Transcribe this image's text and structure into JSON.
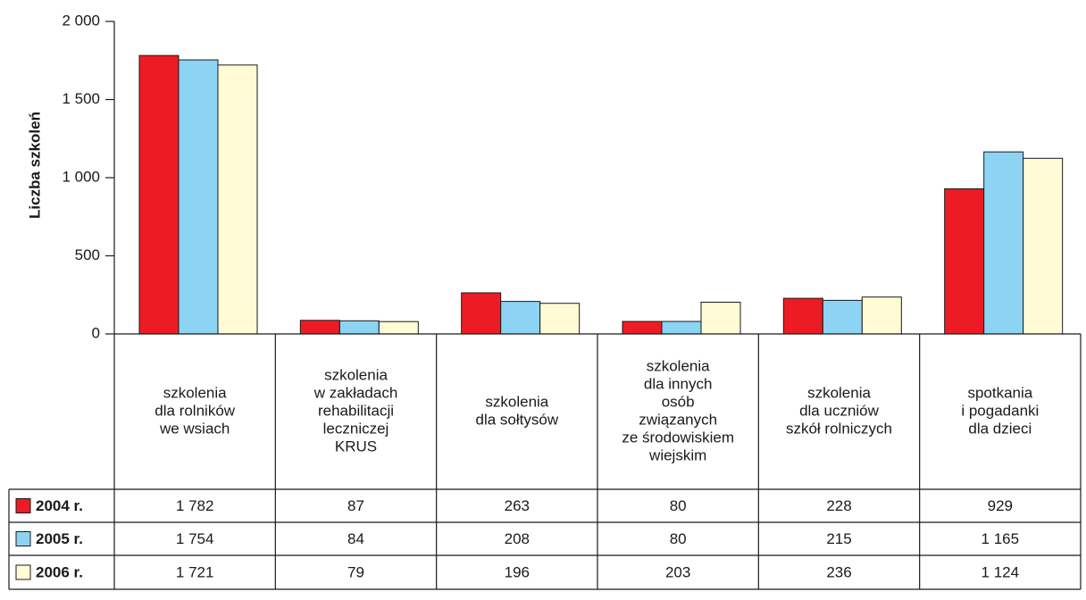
{
  "chart_data": {
    "type": "bar",
    "y_label": "Liczba szkoleń",
    "categories": [
      [
        "szkolenia",
        "dla rolników",
        "we wsiach"
      ],
      [
        "szkolenia",
        "w zakładach",
        "rehabilitacji",
        "leczniczej",
        "KRUS"
      ],
      [
        "szkolenia",
        "dla sołtysów"
      ],
      [
        "szkolenia",
        "dla innych",
        "osób",
        "związanych",
        "ze środowiskiem",
        "wiejskim"
      ],
      [
        "szkolenia",
        "dla uczniów",
        "szkół rolniczych"
      ],
      [
        "spotkania",
        "i pogadanki",
        "dla dzieci"
      ]
    ],
    "series": [
      {
        "name": "2004 r.",
        "color": "#ed1c24",
        "values": [
          1782,
          87,
          263,
          80,
          228,
          929
        ],
        "value_labels": [
          "1 782",
          "87",
          "263",
          "80",
          "228",
          "929"
        ]
      },
      {
        "name": "2005 r.",
        "color": "#8dd3f3",
        "values": [
          1754,
          84,
          208,
          80,
          215,
          1165
        ],
        "value_labels": [
          "1 754",
          "84",
          "208",
          "80",
          "215",
          "1 165"
        ]
      },
      {
        "name": "2006 r.",
        "color": "#fffbd5",
        "values": [
          1721,
          79,
          196,
          203,
          236,
          1124
        ],
        "value_labels": [
          "1 721",
          "79",
          "196",
          "203",
          "236",
          "1 124"
        ]
      }
    ],
    "ylim": [
      0,
      2000
    ],
    "yticks": [
      0,
      500,
      {
        "value": 1000,
        "label": "1 000"
      },
      {
        "value": 1500,
        "label": "1 500"
      },
      {
        "value": 2000,
        "label": "2 000"
      }
    ]
  }
}
